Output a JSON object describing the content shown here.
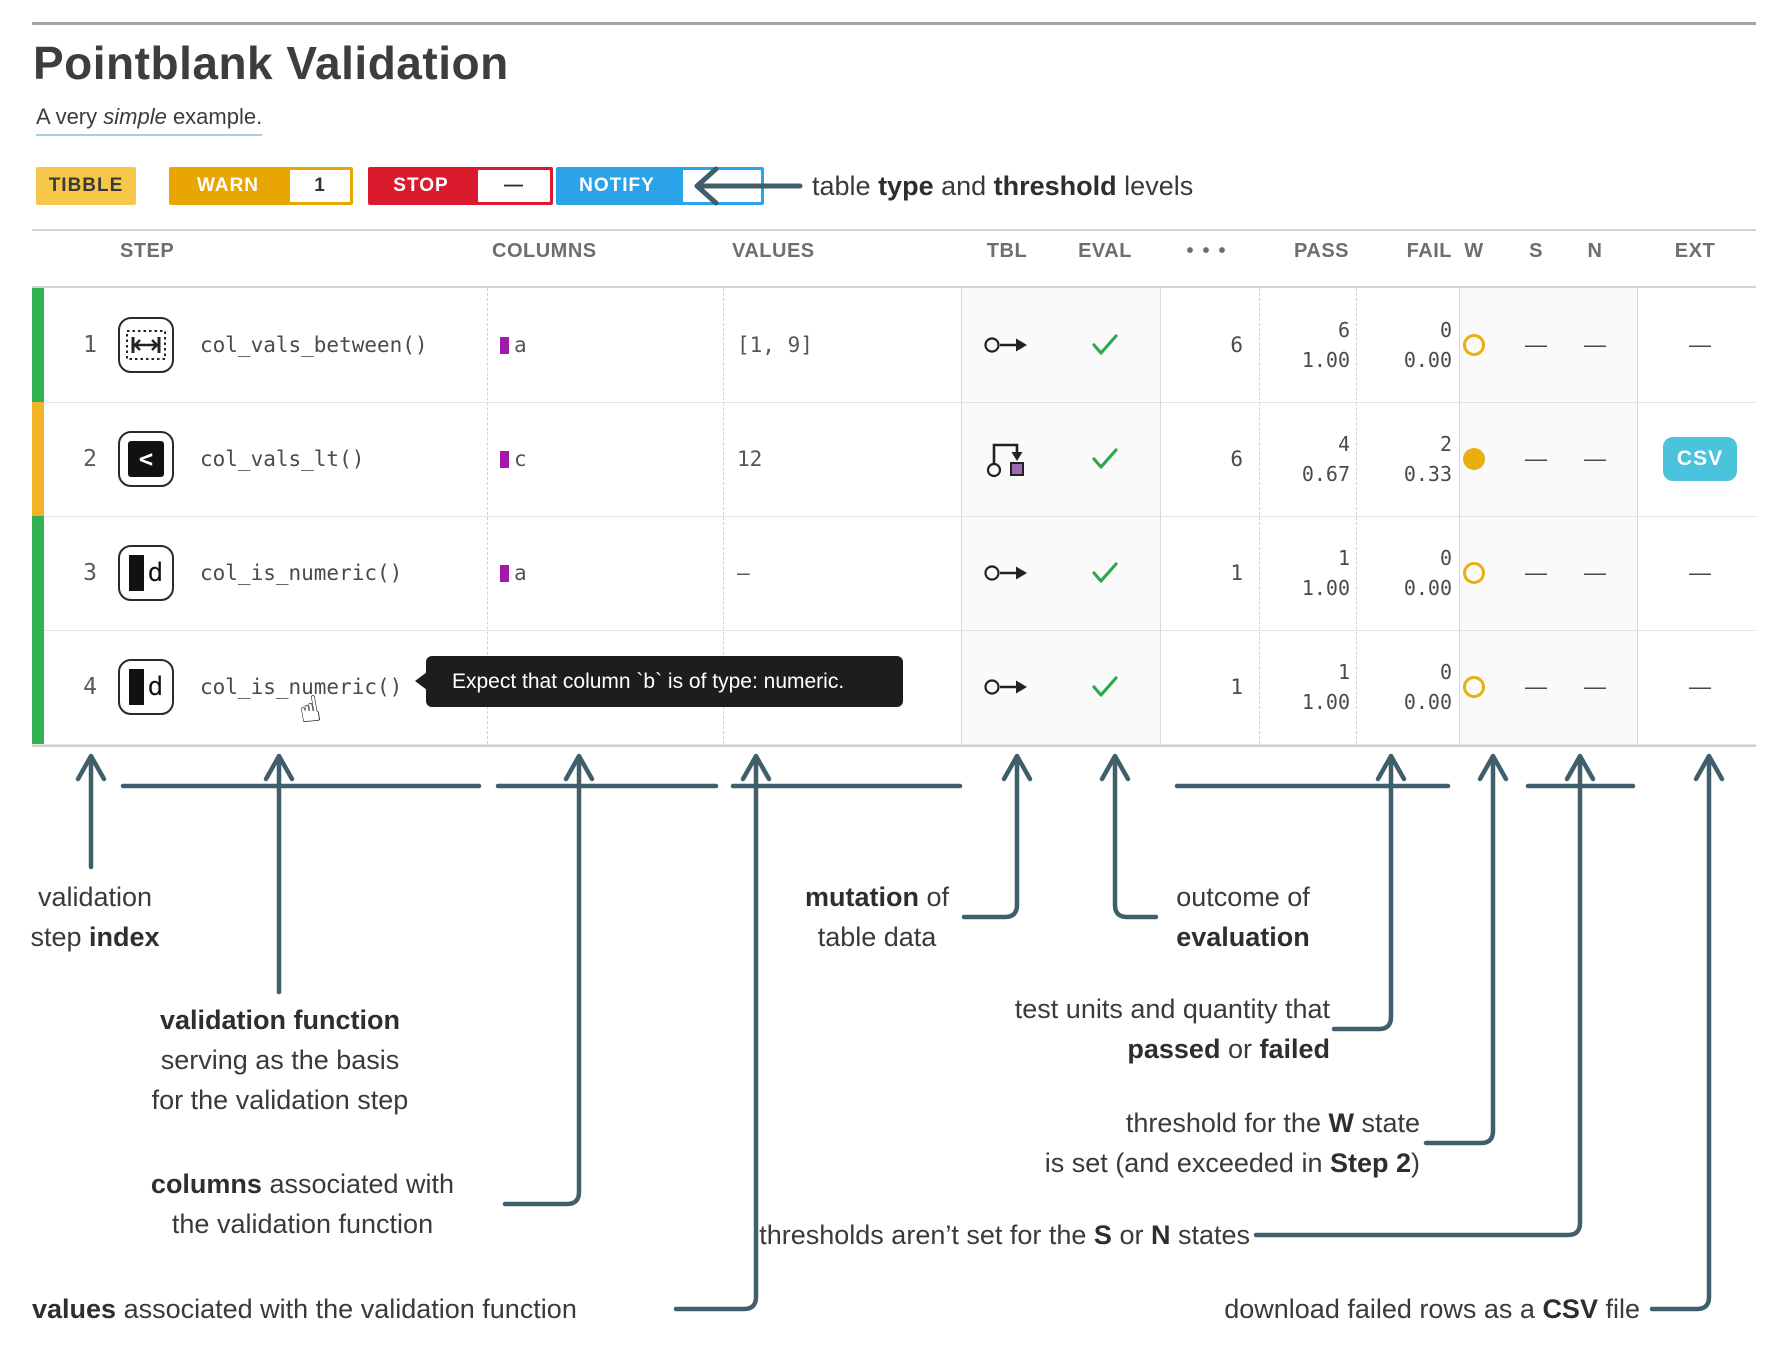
{
  "header": {
    "title": "Pointblank Validation",
    "subtitle": [
      [
        {
          "t": "A very "
        },
        {
          "t": "simple",
          "i": 1
        },
        {
          "t": " example."
        }
      ]
    ]
  },
  "badges": {
    "tibble": {
      "label": "TIBBLE"
    },
    "warn": {
      "label": "WARN",
      "value": "1"
    },
    "stop": {
      "label": "STOP",
      "value": "—"
    },
    "notify": {
      "label": "NOTIFY",
      "value": "—"
    }
  },
  "pointer_note": [
    [
      {
        "t": "table "
      },
      {
        "t": "type",
        "b": 1
      },
      {
        "t": " and "
      },
      {
        "t": "threshold",
        "b": 1
      },
      {
        "t": " levels"
      }
    ]
  ],
  "table": {
    "headers": {
      "step": "STEP",
      "columns": "COLUMNS",
      "values": "VALUES",
      "tbl": "TBL",
      "eval": "EVAL",
      "units_dots": "•••",
      "pass": "PASS",
      "fail": "FAIL",
      "w": "W",
      "s": "S",
      "n": "N",
      "ext": "EXT"
    },
    "rows": [
      {
        "index": "1",
        "fn": "col_vals_between()",
        "column": "a",
        "values": "[1, 9]",
        "units": "6",
        "pass_n": "6",
        "pass_f": "1.00",
        "fail_n": "0",
        "fail_f": "0.00",
        "s": "—",
        "n": "—",
        "ext": "—"
      },
      {
        "index": "2",
        "fn": "col_vals_lt()",
        "column": "c",
        "values": "12",
        "units": "6",
        "pass_n": "4",
        "pass_f": "0.67",
        "fail_n": "2",
        "fail_f": "0.33",
        "s": "—",
        "n": "—",
        "ext_csv": "CSV"
      },
      {
        "index": "3",
        "fn": "col_is_numeric()",
        "column": "a",
        "values": "—",
        "units": "1",
        "pass_n": "1",
        "pass_f": "1.00",
        "fail_n": "0",
        "fail_f": "0.00",
        "s": "—",
        "n": "—",
        "ext": "—"
      },
      {
        "index": "4",
        "fn": "col_is_numeric()",
        "units": "1",
        "pass_n": "1",
        "pass_f": "1.00",
        "fail_n": "0",
        "fail_f": "0.00",
        "s": "—",
        "n": "—",
        "ext": "—"
      }
    ],
    "row_icon_letter_lt": "<",
    "row_icon_letter_numeric": "d"
  },
  "tooltip": {
    "text": "Expect that column `b` is of type: numeric."
  },
  "annotations": {
    "step": [
      [
        {
          "t": "validation"
        }
      ],
      [
        {
          "t": "step "
        },
        {
          "t": "index",
          "b": 1
        }
      ]
    ],
    "fn": [
      [
        {
          "t": "validation function",
          "b": 1
        }
      ],
      [
        {
          "t": "serving as the basis"
        }
      ],
      [
        {
          "t": "for the validation step"
        }
      ]
    ],
    "columns": [
      [
        {
          "t": "columns",
          "b": 1
        },
        {
          "t": " associated with"
        }
      ],
      [
        {
          "t": "the validation function"
        }
      ]
    ],
    "values": [
      [
        {
          "t": "values",
          "b": 1
        },
        {
          "t": " associated with the validation function"
        }
      ]
    ],
    "mutation": [
      [
        {
          "t": "mutation",
          "b": 1
        },
        {
          "t": " of"
        }
      ],
      [
        {
          "t": "table data"
        }
      ]
    ],
    "outcome": [
      [
        {
          "t": "outcome of"
        }
      ],
      [
        {
          "t": "evaluation",
          "b": 1
        }
      ]
    ],
    "testunits": [
      [
        {
          "t": "test units and quantity that"
        }
      ],
      [
        {
          "t": "passed",
          "b": 1
        },
        {
          "t": " or "
        },
        {
          "t": "failed",
          "b": 1
        }
      ]
    ],
    "w_state": [
      [
        {
          "t": "threshold for the "
        },
        {
          "t": "W",
          "b": 1
        },
        {
          "t": " state"
        }
      ],
      [
        {
          "t": "is set (and exceeded in "
        },
        {
          "t": "Step 2",
          "b": 1
        },
        {
          "t": ")"
        }
      ]
    ],
    "sn_states": [
      [
        {
          "t": "thresholds aren’t set for the "
        },
        {
          "t": "S",
          "b": 1
        },
        {
          "t": " or "
        },
        {
          "t": "N",
          "b": 1
        },
        {
          "t": " states"
        }
      ]
    ],
    "csv": [
      [
        {
          "t": "download failed rows as a "
        },
        {
          "t": "CSV",
          "b": 1
        },
        {
          "t": " file"
        }
      ]
    ]
  },
  "colors": {
    "status_green": "#31b154",
    "status_amber": "#f3b229",
    "badge_tibble": "#f5c74b",
    "badge_warn": "#e9a602",
    "badge_stop": "#db1a2e",
    "badge_notify": "#2ba3e8",
    "csv_button": "#4cc3dc",
    "w_threshold_dot": "#eaae0e",
    "eval_check": "#2ea84c",
    "column_swatch_purple": "#a11ba8",
    "arrow_slate": "#405e6b"
  }
}
